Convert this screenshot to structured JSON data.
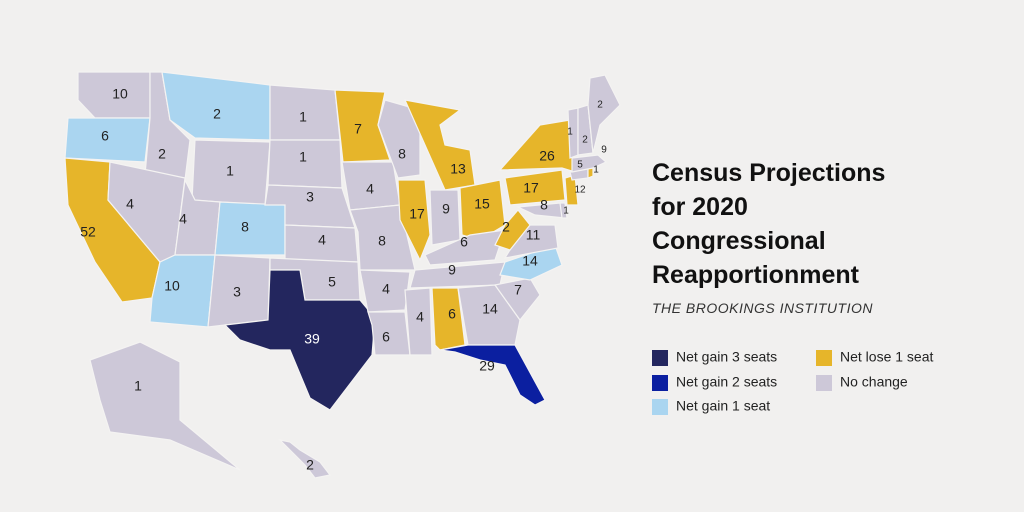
{
  "title": [
    "Census Projections",
    "for 2020",
    "Congressional",
    "Reapportionment"
  ],
  "subtitle": "THE BROOKINGS INSTITUTION",
  "legend": [
    {
      "label": "Net gain 3 seats",
      "color": "#23265e"
    },
    {
      "label": "Net gain 2 seats",
      "color": "#0b1fa0"
    },
    {
      "label": "Net gain 1 seat",
      "color": "#aad5f0"
    },
    {
      "label": "Net lose 1 seat",
      "color": "#e6b52a"
    },
    {
      "label": "No change",
      "color": "#cdc8d8"
    }
  ],
  "states": [
    {
      "seats": 10,
      "color": "#cdc8d8"
    },
    {
      "seats": 6,
      "color": "#aad5f0"
    },
    {
      "seats": 52,
      "color": "#e6b52a"
    },
    {
      "seats": 2,
      "color": "#cdc8d8"
    },
    {
      "seats": 4,
      "color": "#cdc8d8"
    },
    {
      "seats": 2,
      "color": "#aad5f0"
    },
    {
      "seats": 1,
      "color": "#cdc8d8"
    },
    {
      "seats": 4,
      "color": "#cdc8d8"
    },
    {
      "seats": 8,
      "color": "#aad5f0"
    },
    {
      "seats": 10,
      "color": "#aad5f0"
    },
    {
      "seats": 3,
      "color": "#cdc8d8"
    },
    {
      "seats": 1,
      "color": "#cdc8d8"
    },
    {
      "seats": 1,
      "color": "#cdc8d8"
    },
    {
      "seats": 3,
      "color": "#cdc8d8"
    },
    {
      "seats": 4,
      "color": "#cdc8d8"
    },
    {
      "seats": 5,
      "color": "#cdc8d8"
    },
    {
      "seats": 39,
      "color": "#23265e"
    },
    {
      "seats": 7,
      "color": "#e6b52a"
    },
    {
      "seats": 4,
      "color": "#cdc8d8"
    },
    {
      "seats": 8,
      "color": "#cdc8d8"
    },
    {
      "seats": 4,
      "color": "#cdc8d8"
    },
    {
      "seats": 6,
      "color": "#cdc8d8"
    },
    {
      "seats": 8,
      "color": "#cdc8d8"
    },
    {
      "seats": 17,
      "color": "#e6b52a"
    },
    {
      "seats": 13,
      "color": "#e6b52a"
    },
    {
      "seats": 9,
      "color": "#cdc8d8"
    },
    {
      "seats": 15,
      "color": "#e6b52a"
    },
    {
      "seats": 6,
      "color": "#cdc8d8"
    },
    {
      "seats": 9,
      "color": "#cdc8d8"
    },
    {
      "seats": 4,
      "color": "#cdc8d8"
    },
    {
      "seats": 6,
      "color": "#e6b52a"
    },
    {
      "seats": 14,
      "color": "#cdc8d8"
    },
    {
      "seats": 29,
      "color": "#0b1fa0"
    },
    {
      "seats": 7,
      "color": "#cdc8d8"
    },
    {
      "seats": 14,
      "color": "#aad5f0"
    },
    {
      "seats": 11,
      "color": "#cdc8d8"
    },
    {
      "seats": 2,
      "color": "#e6b52a"
    },
    {
      "seats": 17,
      "color": "#e6b52a"
    },
    {
      "seats": 26,
      "color": "#e6b52a"
    },
    {
      "seats": 8,
      "color": "#cdc8d8"
    },
    {
      "seats": 1,
      "color": "#cdc8d8"
    },
    {
      "seats": 12,
      "color": "#e6b52a"
    },
    {
      "seats": 5,
      "color": "#cdc8d8"
    },
    {
      "seats": 1,
      "color": "#e6b52a"
    },
    {
      "seats": 9,
      "color": "#cdc8d8"
    },
    {
      "seats": 1,
      "color": "#cdc8d8"
    },
    {
      "seats": 2,
      "color": "#cdc8d8"
    },
    {
      "seats": 2,
      "color": "#cdc8d8"
    },
    {
      "seats": 1,
      "color": "#cdc8d8"
    },
    {
      "seats": 2,
      "color": "#cdc8d8"
    }
  ]
}
